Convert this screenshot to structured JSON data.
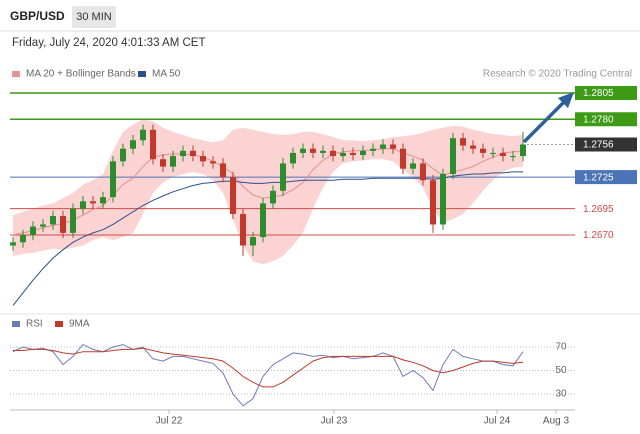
{
  "header": {
    "symbol": "GBP/USD",
    "timeframe": "30 MIN",
    "datetime": "Friday, July 24, 2020 4:01:33 AM CET"
  },
  "chart_data": [
    {
      "type": "candlestick",
      "credit": "Research © 2020 Trading Central",
      "up_color": "#2e8b2e",
      "down_color": "#c0392b",
      "open": [
        1.266,
        1.2663,
        1.267,
        1.2678,
        1.268,
        1.2688,
        1.2672,
        1.2695,
        1.2702,
        1.27,
        1.2706,
        1.274,
        1.2752,
        1.276,
        1.277,
        1.2742,
        1.2735,
        1.2745,
        1.275,
        1.2745,
        1.274,
        1.2738,
        1.2725,
        1.269,
        1.266,
        1.2668,
        1.27,
        1.2712,
        1.2738,
        1.2748,
        1.2752,
        1.2748,
        1.275,
        1.2745,
        1.2748,
        1.2746,
        1.275,
        1.2752,
        1.2756,
        1.2752,
        1.2733,
        1.2738,
        1.2722,
        1.268,
        1.2728,
        1.2762,
        1.2755,
        1.2752,
        1.2748,
        1.2748,
        1.2745,
        1.2745
      ],
      "high": [
        1.2668,
        1.2675,
        1.2683,
        1.2685,
        1.2693,
        1.2693,
        1.27,
        1.2707,
        1.2707,
        1.2711,
        1.2745,
        1.2757,
        1.2765,
        1.2775,
        1.2775,
        1.2747,
        1.275,
        1.2755,
        1.2755,
        1.275,
        1.2745,
        1.2743,
        1.273,
        1.2695,
        1.2673,
        1.2705,
        1.2717,
        1.2743,
        1.2753,
        1.2757,
        1.2757,
        1.2755,
        1.2755,
        1.2753,
        1.2753,
        1.2755,
        1.2757,
        1.2761,
        1.2761,
        1.2757,
        1.2743,
        1.2743,
        1.2727,
        1.2733,
        1.2767,
        1.2767,
        1.276,
        1.2757,
        1.2753,
        1.2753,
        1.275,
        1.2768
      ],
      "low": [
        1.2655,
        1.2658,
        1.2665,
        1.2673,
        1.2675,
        1.2667,
        1.2667,
        1.269,
        1.2695,
        1.2695,
        1.2701,
        1.2735,
        1.2747,
        1.2755,
        1.2737,
        1.273,
        1.273,
        1.274,
        1.274,
        1.2735,
        1.2733,
        1.272,
        1.2685,
        1.265,
        1.265,
        1.2663,
        1.2695,
        1.2707,
        1.2733,
        1.2743,
        1.2743,
        1.2743,
        1.274,
        1.274,
        1.2741,
        1.2741,
        1.2745,
        1.2747,
        1.2747,
        1.2728,
        1.2728,
        1.2717,
        1.2672,
        1.2675,
        1.2723,
        1.275,
        1.2747,
        1.2743,
        1.2743,
        1.274,
        1.274,
        1.274
      ],
      "close": [
        1.2663,
        1.267,
        1.2678,
        1.268,
        1.2688,
        1.2672,
        1.2695,
        1.2702,
        1.27,
        1.2706,
        1.274,
        1.2752,
        1.276,
        1.277,
        1.2742,
        1.2735,
        1.2745,
        1.275,
        1.2745,
        1.274,
        1.2738,
        1.2725,
        1.269,
        1.266,
        1.2668,
        1.27,
        1.2712,
        1.2738,
        1.2748,
        1.2752,
        1.2748,
        1.275,
        1.2745,
        1.2748,
        1.2746,
        1.275,
        1.2752,
        1.2756,
        1.2752,
        1.2733,
        1.2738,
        1.2722,
        1.268,
        1.2728,
        1.2762,
        1.2755,
        1.2752,
        1.2748,
        1.2748,
        1.2745,
        1.2745,
        1.2756
      ],
      "series": [
        {
          "name": "MA 20 + Bollinger Bands",
          "color": "#e88f8f",
          "band_color": "#fbd3d3",
          "values": [
            1.267,
            1.2672,
            1.2674,
            1.2677,
            1.2679,
            1.2681,
            1.2684,
            1.2689,
            1.2694,
            1.2698,
            1.2708,
            1.2718,
            1.2724,
            1.2735,
            1.2744,
            1.2746,
            1.2747,
            1.2747,
            1.2746,
            1.2744,
            1.274,
            1.2735,
            1.2728,
            1.2716,
            1.2708,
            1.2705,
            1.2706,
            1.2708,
            1.2713,
            1.272,
            1.2732,
            1.2741,
            1.2747,
            1.2749,
            1.275,
            1.275,
            1.2751,
            1.2752,
            1.2752,
            1.2748,
            1.2745,
            1.2741,
            1.2733,
            1.2727,
            1.273,
            1.2732,
            1.2735,
            1.274,
            1.2744,
            1.2748,
            1.2749,
            1.275
          ],
          "upper": [
            1.2689,
            1.2692,
            1.2695,
            1.2698,
            1.27,
            1.2705,
            1.271,
            1.2718,
            1.2722,
            1.2728,
            1.275,
            1.2768,
            1.2775,
            1.278,
            1.2778,
            1.2772,
            1.2768,
            1.2765,
            1.2762,
            1.276,
            1.2758,
            1.276,
            1.277,
            1.2772,
            1.277,
            1.2768,
            1.2766,
            1.2765,
            1.2766,
            1.2768,
            1.2768,
            1.2766,
            1.2763,
            1.276,
            1.276,
            1.2759,
            1.276,
            1.2761,
            1.2763,
            1.2764,
            1.2765,
            1.2767,
            1.277,
            1.2772,
            1.2774,
            1.2773,
            1.277,
            1.2768,
            1.2766,
            1.2765,
            1.2764,
            1.2765
          ],
          "lower": [
            1.265,
            1.2652,
            1.2653,
            1.2655,
            1.2657,
            1.2656,
            1.2658,
            1.266,
            1.2665,
            1.2668,
            1.2665,
            1.2668,
            1.2672,
            1.269,
            1.271,
            1.272,
            1.2725,
            1.2728,
            1.273,
            1.2728,
            1.2722,
            1.271,
            1.2685,
            1.266,
            1.2645,
            1.2642,
            1.2645,
            1.265,
            1.266,
            1.2672,
            1.2695,
            1.2715,
            1.273,
            1.2738,
            1.274,
            1.2741,
            1.2742,
            1.2742,
            1.274,
            1.2732,
            1.2725,
            1.2715,
            1.2695,
            1.2682,
            1.2685,
            1.269,
            1.27,
            1.2712,
            1.2722,
            1.273,
            1.2734,
            1.2735
          ]
        },
        {
          "name": "MA 50",
          "color": "#2c4f8f",
          "values": [
            1.2603,
            1.2615,
            1.2627,
            1.2638,
            1.2648,
            1.2656,
            1.2663,
            1.2668,
            1.2672,
            1.2675,
            1.268,
            1.2686,
            1.2692,
            1.2698,
            1.2703,
            1.2707,
            1.2711,
            1.2714,
            1.2717,
            1.2719,
            1.272,
            1.2721,
            1.2721,
            1.272,
            1.2719,
            1.2719,
            1.272,
            1.272,
            1.2721,
            1.2722,
            1.2722,
            1.2722,
            1.2722,
            1.2723,
            1.2723,
            1.2723,
            1.2724,
            1.2724,
            1.2724,
            1.2724,
            1.2724,
            1.2724,
            1.2723,
            1.2724,
            1.2726,
            1.2727,
            1.2728,
            1.2728,
            1.2729,
            1.2729,
            1.273,
            1.273
          ]
        }
      ],
      "levels": [
        {
          "value": 1.2805,
          "color": "#3c9a14",
          "style": "solid",
          "label_style": "box"
        },
        {
          "value": 1.278,
          "label": "1.2780",
          "color": "#3c9a14",
          "style": "solid",
          "label_style": "box"
        },
        {
          "value": 1.2756,
          "color": "#333333",
          "style": "dotted",
          "label_style": "box"
        },
        {
          "value": 1.2725,
          "color": "#4a73b8",
          "style": "solid",
          "label_style": "box"
        },
        {
          "value": 1.2695,
          "color": "#d34a4a",
          "style": "solid",
          "label_style": "text"
        },
        {
          "value": 1.267,
          "label": "1.2670",
          "color": "#d34a4a",
          "style": "solid",
          "label_style": "text"
        }
      ],
      "xlim": [
        -0.3,
        56.2
      ],
      "ylim": [
        1.26,
        1.2835
      ]
    },
    {
      "type": "line",
      "series": [
        {
          "name": "RSI",
          "color": "#6b7bb8",
          "values": [
            66,
            70,
            68,
            69,
            66,
            55,
            62,
            72,
            68,
            66,
            70,
            72,
            68,
            70,
            60,
            58,
            62,
            62,
            60,
            58,
            56,
            48,
            30,
            20,
            26,
            45,
            55,
            60,
            65,
            64,
            62,
            63,
            61,
            62,
            60,
            61,
            62,
            65,
            62,
            45,
            50,
            44,
            33,
            55,
            68,
            62,
            60,
            58,
            58,
            55,
            54,
            66
          ]
        },
        {
          "name": "9MA",
          "color": "#c0392b",
          "values": [
            67,
            67,
            68,
            68,
            67,
            65,
            64,
            66,
            66,
            66,
            67,
            68,
            68,
            69,
            67,
            65,
            64,
            63,
            62,
            61,
            60,
            58,
            52,
            45,
            40,
            36,
            36,
            40,
            46,
            52,
            58,
            61,
            62,
            62,
            62,
            62,
            62,
            62,
            62,
            59,
            57,
            54,
            50,
            48,
            50,
            53,
            56,
            58,
            58,
            57,
            56,
            57
          ]
        }
      ],
      "xlim": [
        -0.3,
        56.2
      ],
      "xticks": [
        {
          "value": 15.6,
          "label": "Jul 22"
        },
        {
          "value": 32.1,
          "label": "Jul 23"
        },
        {
          "value": 48.4,
          "label": "Jul 24"
        },
        {
          "value": 54.3,
          "label": "Aug 3"
        }
      ],
      "ylim": [
        16,
        80
      ],
      "yticks": [
        30,
        50,
        70
      ],
      "grid": true
    }
  ]
}
